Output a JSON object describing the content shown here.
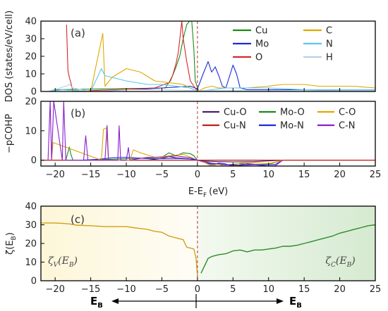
{
  "chart_data": [
    {
      "panel": "(a)",
      "type": "line",
      "ylabel": "DOS (states/eV/cell)",
      "xlim": [
        -22,
        25
      ],
      "ylim": [
        0,
        40
      ],
      "yticks": [
        0,
        10,
        20,
        30,
        40
      ],
      "x_ticks_labeled": false,
      "fermi_line": 0,
      "legend_position": "top-right",
      "series": [
        {
          "name": "Cu",
          "color": "#1a8a1a",
          "x": [
            -20.5,
            -20.3,
            -4.5,
            -4.2,
            -3.8,
            -3.5,
            -3.0,
            -2.5,
            -2.0,
            -1.5,
            -1.1,
            -0.8,
            -0.5,
            -0.3,
            0.2
          ],
          "y": [
            0,
            1,
            2,
            4,
            6,
            9,
            14,
            20,
            30,
            38,
            40,
            40,
            24,
            6,
            0
          ]
        },
        {
          "name": "Mo",
          "color": "#1e2bd8",
          "x": [
            -13,
            -10,
            -7,
            -5,
            -3,
            -1,
            0,
            0.8,
            1.5,
            2.0,
            2.5,
            3.0,
            3.5,
            4.0,
            5.0,
            5.5,
            6.0,
            7,
            10,
            15,
            20,
            25
          ],
          "y": [
            0.3,
            1,
            1.5,
            2,
            2.5,
            3,
            1.5,
            10,
            17,
            11,
            14,
            9,
            3,
            2,
            15,
            10,
            2,
            1,
            1,
            1,
            0.5,
            0.5
          ]
        },
        {
          "name": "O",
          "color": "#d62728",
          "x": [
            -18.4,
            -18.2,
            -18.0,
            -17.8,
            -17.5,
            -6,
            -4,
            -3.5,
            -3.0,
            -2.7,
            -2.5,
            -2.2,
            -2.0,
            -1.5,
            -1.0,
            0
          ],
          "y": [
            38,
            12,
            8,
            5,
            0,
            2,
            5,
            9,
            16,
            22,
            29,
            40,
            30,
            17,
            6,
            0
          ]
        },
        {
          "name": "C",
          "color": "#e0a800",
          "x": [
            -21,
            -15,
            -13.3,
            -13,
            -12,
            -10,
            -8,
            -6,
            -4,
            -2,
            0,
            1,
            2,
            3,
            5,
            7,
            10,
            12,
            15,
            17,
            20,
            22,
            25
          ],
          "y": [
            0,
            0,
            33,
            3,
            8,
            13,
            11,
            6,
            5,
            4,
            0,
            2,
            3,
            2,
            2,
            2,
            3,
            4,
            4,
            3,
            3,
            3,
            2
          ]
        },
        {
          "name": "N",
          "color": "#56c8f0",
          "x": [
            -21,
            -19,
            -15,
            -13.5,
            -13,
            -10,
            -7,
            -5,
            -3,
            -1,
            0,
            2,
            4,
            6,
            10,
            15,
            20,
            25
          ],
          "y": [
            0,
            1,
            0,
            13,
            9,
            6,
            4,
            4,
            3,
            2,
            0,
            1,
            2,
            2,
            2,
            1,
            1,
            1
          ]
        },
        {
          "name": "H",
          "color": "#b8cfe6",
          "x": [
            -21,
            -18.5,
            -18,
            -17.5,
            -15,
            -10,
            -5,
            0,
            5,
            10,
            15,
            20,
            25
          ],
          "y": [
            0,
            3,
            4,
            2,
            0,
            1,
            1,
            0.5,
            0.5,
            0.5,
            0.5,
            0.5,
            0.5
          ]
        }
      ]
    },
    {
      "panel": "(b)",
      "type": "line",
      "ylabel": "−pCOHP",
      "xlabel_main": "E-E",
      "xlabel_sub": "F",
      "xlabel_unit": "(eV)",
      "xlim": [
        -22,
        25
      ],
      "ylim": [
        -2,
        20
      ],
      "yticks": [
        0,
        10,
        20
      ],
      "xticks": [
        -20,
        -15,
        -10,
        -5,
        0,
        5,
        10,
        15,
        20,
        25
      ],
      "fermi_line": 0,
      "legend_position": "top-right",
      "series": [
        {
          "name": "Cu-O",
          "color": "#4b1f6f",
          "x": [
            -7,
            -5,
            -4,
            -3,
            -2,
            -1,
            0,
            1,
            3,
            5,
            8,
            12
          ],
          "y": [
            0,
            0.6,
            1.2,
            0.8,
            0.6,
            0.4,
            0,
            -0.3,
            -0.5,
            -0.6,
            -0.5,
            0
          ]
        },
        {
          "name": "Cu-N",
          "color": "#c0201a",
          "x": [
            -22,
            -20,
            -15,
            -10,
            -5,
            0,
            5,
            10,
            12,
            15,
            20,
            25
          ],
          "y": [
            0,
            0,
            0,
            0,
            0,
            0,
            0,
            0,
            0,
            0,
            0,
            0
          ]
        },
        {
          "name": "Mo-O",
          "color": "#1a8a1a",
          "x": [
            -18.5,
            -18.0,
            -17.8,
            -17.5,
            -15,
            -5,
            -4,
            -3,
            -2,
            -1,
            -0.5,
            0,
            1,
            2,
            4,
            6,
            8,
            10,
            12
          ],
          "y": [
            0,
            4.5,
            2,
            0,
            0,
            1,
            2.5,
            1.5,
            2.5,
            2.2,
            1.5,
            0,
            -0.8,
            -1.2,
            -1.6,
            -1.2,
            -1.5,
            -1.4,
            0
          ]
        },
        {
          "name": "Mo-N",
          "color": "#1e2bd8",
          "x": [
            -16,
            -14,
            -12,
            -10,
            -7,
            -5,
            -3,
            -1,
            0,
            1,
            2,
            3,
            4,
            5,
            7,
            9,
            11,
            12
          ],
          "y": [
            0,
            0.3,
            0.8,
            1,
            0.5,
            0.5,
            0.6,
            0.4,
            0,
            -0.8,
            -1.5,
            -1,
            -1.3,
            -2,
            -1.2,
            -1.6,
            -1.4,
            0
          ]
        },
        {
          "name": "C-O",
          "color": "#e0a800",
          "x": [
            -20.5,
            -20.3,
            -13.5,
            -13.2,
            -12.8,
            -12.5,
            -9.5,
            -9.0,
            -8,
            -6,
            -4,
            -2,
            0,
            1,
            2,
            3,
            4.5,
            5,
            6,
            8,
            10,
            12
          ],
          "y": [
            0,
            6,
            0,
            10.5,
            11,
            0,
            0,
            3.5,
            2.5,
            1,
            1.5,
            2,
            0,
            -0.8,
            -2,
            -1.2,
            -3.2,
            -2,
            -1,
            -0.8,
            -1.2,
            0
          ]
        },
        {
          "name": "C-N",
          "color": "#8a1fd0",
          "x": [
            -21.0,
            -20.7,
            -20.5,
            -20.2,
            -19.0,
            -18.8,
            -18.5,
            -16.0,
            -15.7,
            -15.4,
            -13.0,
            -12.7,
            -12.5,
            -11.2,
            -11.0,
            -10.8,
            -10.0,
            -9.7,
            -9.5,
            -7,
            -5,
            -3,
            -1,
            0,
            2,
            4,
            6,
            8,
            10,
            11,
            12
          ],
          "y": [
            0,
            20,
            0,
            20,
            0,
            20,
            0,
            0,
            8.3,
            0,
            0,
            11.8,
            0,
            0,
            11.7,
            0,
            0,
            4.3,
            0,
            1,
            1,
            1.5,
            0.8,
            0,
            -1,
            -1.5,
            -1.8,
            -1.5,
            -2,
            -1.8,
            0
          ]
        }
      ]
    },
    {
      "panel": "(c)",
      "type": "line",
      "ylabel_main": "ζ(E",
      "ylabel_sub": "B",
      "ylabel_close": ")",
      "xlim": [
        -22,
        25
      ],
      "ylim": [
        0,
        40
      ],
      "yticks": [
        0,
        10,
        20,
        30,
        40
      ],
      "xticks": [
        -20,
        -15,
        -10,
        -5,
        0,
        5,
        10,
        15,
        20,
        25
      ],
      "fermi_line": 0,
      "series": [
        {
          "name": "ζV(EB)",
          "color": "#d4a017",
          "x": [
            -22,
            -21,
            -20,
            -19,
            -18,
            -17,
            -15,
            -13,
            -12,
            -10,
            -9,
            -8,
            -7,
            -6,
            -5,
            -4,
            -3,
            -2,
            -1.5,
            -1,
            -0.5,
            -0.2,
            0
          ],
          "y": [
            31,
            31,
            31,
            30.8,
            30.5,
            29.8,
            29.5,
            29,
            29,
            29,
            28.5,
            28,
            27.5,
            26.5,
            26,
            24,
            23,
            22,
            18,
            17.5,
            17,
            12,
            3
          ]
        },
        {
          "name": "ζC(EB)",
          "color": "#2e8b2e",
          "x": [
            0.5,
            1,
            1.5,
            2,
            3,
            4,
            5,
            6,
            7,
            8,
            9,
            10,
            11,
            12,
            13,
            14,
            15,
            16,
            17,
            18,
            19,
            20,
            21,
            22,
            23,
            24,
            25
          ],
          "y": [
            4,
            8,
            12,
            13,
            14,
            14.5,
            16,
            16.5,
            15.5,
            16.5,
            16.5,
            17,
            17.5,
            18.5,
            18.5,
            19,
            20,
            21,
            22,
            23,
            24,
            25.5,
            26.5,
            27.5,
            28.5,
            29.5,
            30
          ]
        }
      ],
      "annotations": [
        {
          "base": "ζ",
          "sub": "V",
          "paren": "(E",
          "sub2": "B",
          "close": ")",
          "anchor_x": -21,
          "anchor_y": 9
        },
        {
          "base": "ζ",
          "sub": "C",
          "paren": "(E",
          "sub2": "B",
          "close": ")",
          "anchor_x": 18,
          "anchor_y": 9
        }
      ],
      "eb_left": {
        "main": "E",
        "sub": "B"
      },
      "eb_right": {
        "main": "E",
        "sub": "B"
      }
    }
  ],
  "colors": {
    "fermi_line": "#b03a2e",
    "axis": "#000000",
    "valence_fill_start": "#fdf6d8",
    "valence_fill_end": "#fefdf6",
    "conduction_fill_start": "#f4f9f0",
    "conduction_fill_end": "#d5ead0"
  }
}
